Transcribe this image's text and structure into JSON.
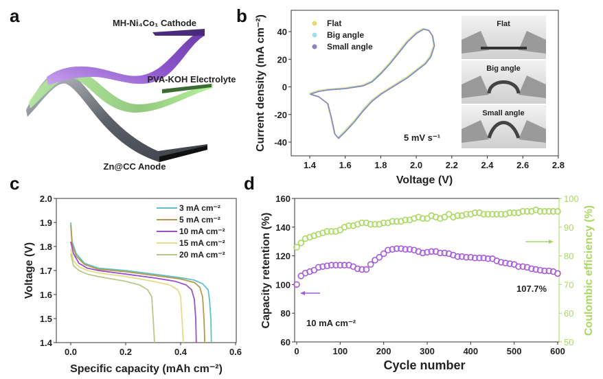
{
  "panel_labels": {
    "a": "a",
    "b": "b",
    "c": "c",
    "d": "d"
  },
  "panel_a": {
    "cathode_label": "MH-Ni₄Co₁ Cathode",
    "electrolyte_label": "PVA-KOH Electrolyte",
    "anode_label": "Zn@CC Anode",
    "colors": {
      "cathode": "#9b5fd6",
      "electrolyte": "#9be07a",
      "anode": "#6b6f78"
    }
  },
  "chart_data": [
    {
      "type": "line",
      "panel": "b",
      "xlabel": "Voltage (V)",
      "ylabel": "Current density (mA cm⁻²)",
      "xlim": [
        1.3,
        2.8
      ],
      "ylim": [
        -50,
        55
      ],
      "xticks": [
        "1.4",
        "1.6",
        "1.8",
        "2.0",
        "2.2",
        "2.4",
        "2.6",
        "2.8"
      ],
      "yticks": [
        "-40",
        "-20",
        "0",
        "20",
        "40"
      ],
      "annotation": "5 mV s⁻¹",
      "legend_position": "top-left",
      "curve": [
        [
          1.4,
          -5
        ],
        [
          1.45,
          -3
        ],
        [
          1.5,
          -2
        ],
        [
          1.6,
          -1
        ],
        [
          1.7,
          1
        ],
        [
          1.75,
          4
        ],
        [
          1.8,
          10
        ],
        [
          1.85,
          17
        ],
        [
          1.9,
          25
        ],
        [
          1.95,
          33
        ],
        [
          2.0,
          39
        ],
        [
          2.04,
          42
        ],
        [
          2.07,
          41
        ],
        [
          2.09,
          37
        ],
        [
          2.1,
          30
        ],
        [
          2.08,
          22
        ],
        [
          2.05,
          17
        ],
        [
          2.0,
          12
        ],
        [
          1.95,
          7
        ],
        [
          1.9,
          3
        ],
        [
          1.85,
          -1
        ],
        [
          1.8,
          -5
        ],
        [
          1.75,
          -10
        ],
        [
          1.7,
          -17
        ],
        [
          1.65,
          -25
        ],
        [
          1.6,
          -32
        ],
        [
          1.56,
          -37
        ],
        [
          1.54,
          -34
        ],
        [
          1.52,
          -22
        ],
        [
          1.5,
          -12
        ],
        [
          1.45,
          -7
        ],
        [
          1.4,
          -5
        ]
      ],
      "series": [
        {
          "name": "Flat",
          "color": "#e8dc70"
        },
        {
          "name": "Big angle",
          "color": "#9fe0e8"
        },
        {
          "name": "Small angle",
          "color": "#8a82b8"
        }
      ],
      "inset_labels": [
        "Flat",
        "Big angle",
        "Small angle"
      ]
    },
    {
      "type": "line",
      "panel": "c",
      "xlabel": "Specific capacity (mAh cm⁻²)",
      "ylabel": "Voltage (V)",
      "xlim": [
        -0.05,
        0.6
      ],
      "ylim": [
        1.4,
        2.0
      ],
      "xticks": [
        "0.0",
        "0.2",
        "0.4",
        "0.6"
      ],
      "yticks": [
        "1.4",
        "1.5",
        "1.6",
        "1.7",
        "1.8",
        "1.9",
        "2.0"
      ],
      "legend_position": "top-right",
      "series": [
        {
          "name": "3 mA cm⁻²",
          "color": "#5bc0c8",
          "points": [
            [
              0,
              1.9
            ],
            [
              0.005,
              1.82
            ],
            [
              0.02,
              1.77
            ],
            [
              0.05,
              1.73
            ],
            [
              0.1,
              1.71
            ],
            [
              0.2,
              1.7
            ],
            [
              0.3,
              1.685
            ],
            [
              0.4,
              1.67
            ],
            [
              0.45,
              1.66
            ],
            [
              0.48,
              1.645
            ],
            [
              0.5,
              1.62
            ],
            [
              0.505,
              1.58
            ],
            [
              0.51,
              1.5
            ],
            [
              0.512,
              1.4
            ]
          ]
        },
        {
          "name": "5 mA cm⁻²",
          "color": "#b89a4a",
          "points": [
            [
              0,
              1.89
            ],
            [
              0.005,
              1.81
            ],
            [
              0.02,
              1.76
            ],
            [
              0.05,
              1.725
            ],
            [
              0.1,
              1.705
            ],
            [
              0.2,
              1.695
            ],
            [
              0.3,
              1.68
            ],
            [
              0.4,
              1.665
            ],
            [
              0.45,
              1.65
            ],
            [
              0.47,
              1.63
            ],
            [
              0.48,
              1.59
            ],
            [
              0.485,
              1.5
            ],
            [
              0.488,
              1.4
            ]
          ]
        },
        {
          "name": "10 mA cm⁻²",
          "color": "#9a4fc8",
          "points": [
            [
              0,
              1.82
            ],
            [
              0.01,
              1.77
            ],
            [
              0.03,
              1.73
            ],
            [
              0.06,
              1.71
            ],
            [
              0.1,
              1.7
            ],
            [
              0.2,
              1.685
            ],
            [
              0.3,
              1.67
            ],
            [
              0.38,
              1.655
            ],
            [
              0.42,
              1.64
            ],
            [
              0.44,
              1.62
            ],
            [
              0.45,
              1.58
            ],
            [
              0.455,
              1.5
            ],
            [
              0.457,
              1.4
            ]
          ]
        },
        {
          "name": "15 mA cm⁻²",
          "color": "#e6dc88",
          "points": [
            [
              0,
              1.79
            ],
            [
              0.01,
              1.74
            ],
            [
              0.03,
              1.715
            ],
            [
              0.06,
              1.7
            ],
            [
              0.1,
              1.69
            ],
            [
              0.2,
              1.675
            ],
            [
              0.3,
              1.655
            ],
            [
              0.36,
              1.64
            ],
            [
              0.39,
              1.62
            ],
            [
              0.4,
              1.59
            ],
            [
              0.405,
              1.5
            ],
            [
              0.41,
              1.4
            ]
          ]
        },
        {
          "name": "20 mA cm⁻²",
          "color": "#b6c88a",
          "points": [
            [
              0,
              1.77
            ],
            [
              0.01,
              1.72
            ],
            [
              0.03,
              1.7
            ],
            [
              0.06,
              1.685
            ],
            [
              0.1,
              1.675
            ],
            [
              0.2,
              1.655
            ],
            [
              0.25,
              1.64
            ],
            [
              0.28,
              1.62
            ],
            [
              0.295,
              1.59
            ],
            [
              0.3,
              1.5
            ],
            [
              0.305,
              1.4
            ]
          ]
        }
      ]
    },
    {
      "type": "scatter",
      "panel": "d",
      "xlabel": "Cycle number",
      "ylabel": "Capacity retention (%)",
      "ylabel_right": "Coulombic efficiency (%)",
      "xlim": [
        -5,
        603
      ],
      "ylim": [
        60,
        160
      ],
      "ylim_right": [
        50,
        100
      ],
      "xticks": [
        "0",
        "100",
        "200",
        "300",
        "400",
        "500",
        "600"
      ],
      "yticks": [
        "60",
        "80",
        "100",
        "120",
        "140",
        "160"
      ],
      "yticks_right": [
        "50",
        "60",
        "70",
        "80",
        "90",
        "100"
      ],
      "annotations": {
        "current": "10 mA cm⁻²",
        "final_retention": "107.7%"
      },
      "x": [
        0,
        10,
        20,
        30,
        40,
        50,
        60,
        70,
        80,
        90,
        100,
        110,
        120,
        130,
        140,
        150,
        160,
        170,
        180,
        190,
        200,
        210,
        220,
        230,
        240,
        250,
        260,
        270,
        280,
        290,
        300,
        310,
        320,
        330,
        340,
        350,
        360,
        370,
        380,
        390,
        400,
        410,
        420,
        430,
        440,
        450,
        460,
        470,
        480,
        490,
        500,
        510,
        520,
        530,
        540,
        550,
        560,
        570,
        580,
        590,
        600
      ],
      "series": [
        {
          "name": "Capacity retention",
          "axis": "left",
          "color": "#a45ad8",
          "values": [
            100,
            106,
            108,
            109,
            110,
            112,
            112.5,
            113,
            113.5,
            113.5,
            113.5,
            113.5,
            113.5,
            112.5,
            111,
            110.5,
            110.5,
            114,
            117,
            119,
            121.5,
            124,
            124.5,
            125,
            125,
            124.5,
            124.5,
            124,
            123,
            122,
            122.5,
            123,
            123,
            122,
            122,
            121.5,
            120.5,
            119.5,
            119.5,
            119,
            119,
            118.5,
            118.5,
            118.5,
            118,
            118,
            116.5,
            115.5,
            115,
            114.5,
            114,
            112.5,
            112.5,
            112,
            111,
            110.5,
            110,
            109.5,
            109.5,
            109,
            107.7
          ]
        },
        {
          "name": "Coulombic efficiency",
          "axis": "right",
          "color": "#a8d860",
          "values": [
            83,
            84.5,
            86,
            86.5,
            87,
            87.5,
            88,
            88.5,
            88.5,
            88.5,
            89,
            90,
            90.5,
            90.5,
            91,
            91.5,
            91.5,
            91,
            91,
            91,
            91.5,
            91.5,
            92,
            92,
            92,
            92.5,
            92.5,
            93,
            93.5,
            93,
            93,
            94,
            93.5,
            93,
            93.5,
            94.5,
            93.5,
            94,
            94,
            94.5,
            94.5,
            95,
            95,
            94.5,
            94.5,
            94.5,
            94.5,
            94.5,
            94.5,
            95,
            95,
            95,
            95.5,
            95.5,
            95.5,
            96,
            95.5,
            95.5,
            95.5,
            95.5,
            95.5
          ]
        }
      ]
    }
  ]
}
